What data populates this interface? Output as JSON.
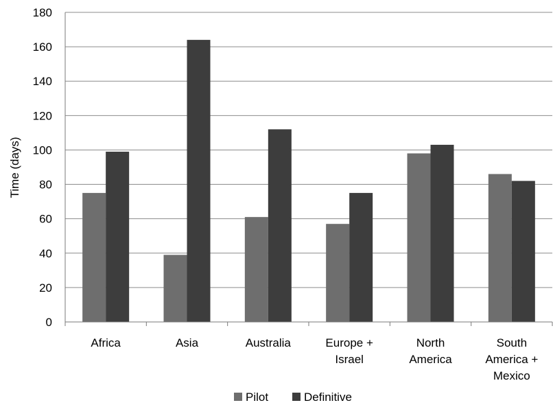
{
  "chart_data": {
    "type": "bar",
    "title": "",
    "xlabel": "",
    "ylabel": "Time (days)",
    "ylim": [
      0,
      180
    ],
    "yticks": [
      0,
      20,
      40,
      60,
      80,
      100,
      120,
      140,
      160,
      180
    ],
    "grid": true,
    "legend_position": "bottom",
    "categories": [
      [
        "Africa"
      ],
      [
        "Asia"
      ],
      [
        "Australia"
      ],
      [
        "Europe +",
        "Israel"
      ],
      [
        "North",
        "America"
      ],
      [
        "South",
        "America +",
        "Mexico"
      ]
    ],
    "series": [
      {
        "name": "Pilot",
        "color": "#6e6e6e",
        "values": [
          75,
          39,
          61,
          57,
          98,
          86
        ]
      },
      {
        "name": "Definitive",
        "color": "#3d3d3d",
        "values": [
          99,
          164,
          112,
          75,
          103,
          82
        ]
      }
    ]
  }
}
